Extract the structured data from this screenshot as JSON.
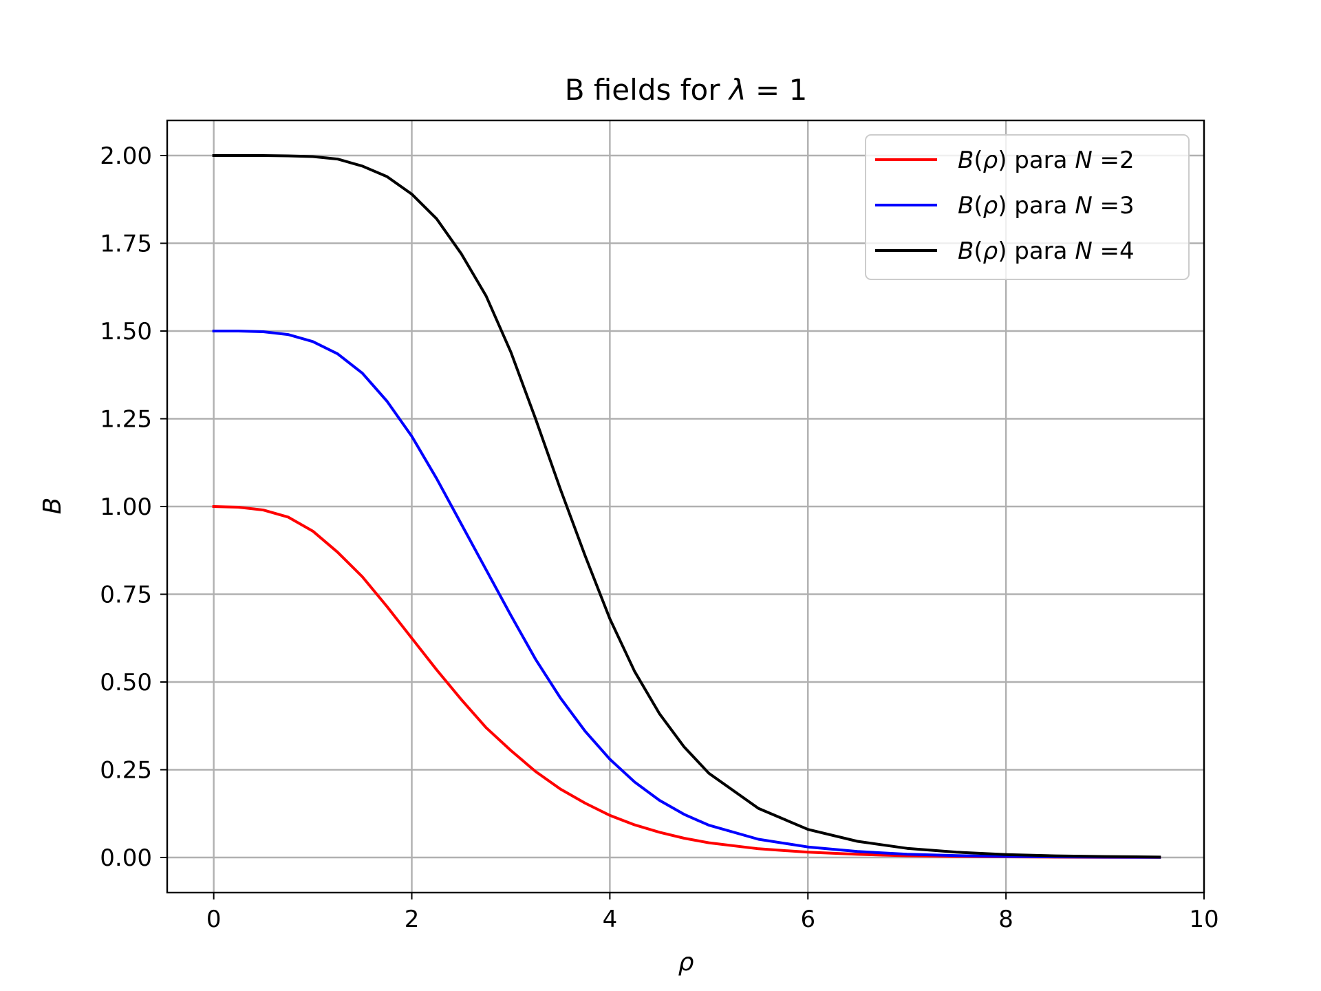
{
  "chart_data": {
    "type": "line",
    "title": "B fields for λ = 1",
    "xlabel": "ρ",
    "ylabel": "B",
    "xlim": [
      -0.47,
      10
    ],
    "ylim": [
      -0.1,
      2.1
    ],
    "xticks": [
      0,
      2,
      4,
      6,
      8,
      10
    ],
    "xtick_labels": [
      "0",
      "2",
      "4",
      "6",
      "8",
      "10"
    ],
    "yticks": [
      0,
      0.25,
      0.5,
      0.75,
      1.0,
      1.25,
      1.5,
      1.75,
      2.0
    ],
    "ytick_labels": [
      "0.00",
      "0.25",
      "0.50",
      "0.75",
      "1.00",
      "1.25",
      "1.50",
      "1.75",
      "2.00"
    ],
    "grid": true,
    "legend_position": "top-right",
    "series": [
      {
        "name": "B(ρ) para N =2",
        "color": "#ff0000",
        "x": [
          0,
          0.25,
          0.5,
          0.75,
          1.0,
          1.25,
          1.5,
          1.75,
          2.0,
          2.25,
          2.5,
          2.75,
          3.0,
          3.25,
          3.5,
          3.75,
          4.0,
          4.25,
          4.5,
          4.75,
          5.0,
          5.5,
          6.0,
          6.5,
          7.0,
          7.5,
          8.0,
          8.5,
          9.0,
          9.55
        ],
        "y": [
          1.0,
          0.998,
          0.99,
          0.97,
          0.93,
          0.87,
          0.8,
          0.715,
          0.625,
          0.535,
          0.45,
          0.37,
          0.305,
          0.245,
          0.195,
          0.155,
          0.12,
          0.093,
          0.072,
          0.055,
          0.042,
          0.025,
          0.015,
          0.009,
          0.005,
          0.003,
          0.002,
          0.001,
          0.0006,
          0.0003
        ]
      },
      {
        "name": "B(ρ) para N =3",
        "color": "#0000ff",
        "x": [
          0,
          0.25,
          0.5,
          0.75,
          1.0,
          1.25,
          1.5,
          1.75,
          2.0,
          2.25,
          2.5,
          2.75,
          3.0,
          3.25,
          3.5,
          3.75,
          4.0,
          4.25,
          4.5,
          4.75,
          5.0,
          5.5,
          6.0,
          6.5,
          7.0,
          7.5,
          8.0,
          8.5,
          9.0,
          9.55
        ],
        "y": [
          1.5,
          1.5,
          1.498,
          1.49,
          1.47,
          1.435,
          1.38,
          1.3,
          1.2,
          1.08,
          0.95,
          0.82,
          0.69,
          0.565,
          0.455,
          0.36,
          0.28,
          0.215,
          0.163,
          0.123,
          0.092,
          0.052,
          0.03,
          0.017,
          0.0095,
          0.0053,
          0.003,
          0.0017,
          0.001,
          0.0005
        ]
      },
      {
        "name": "B(ρ) para N =4",
        "color": "#000000",
        "x": [
          0,
          0.25,
          0.5,
          0.75,
          1.0,
          1.25,
          1.5,
          1.75,
          2.0,
          2.25,
          2.5,
          2.75,
          3.0,
          3.25,
          3.5,
          3.75,
          4.0,
          4.25,
          4.5,
          4.75,
          5.0,
          5.5,
          6.0,
          6.5,
          7.0,
          7.5,
          8.0,
          8.5,
          9.0,
          9.55
        ],
        "y": [
          2.0,
          2.0,
          2.0,
          1.999,
          1.997,
          1.99,
          1.97,
          1.94,
          1.89,
          1.82,
          1.72,
          1.6,
          1.44,
          1.25,
          1.05,
          0.86,
          0.68,
          0.53,
          0.41,
          0.315,
          0.24,
          0.14,
          0.08,
          0.046,
          0.026,
          0.015,
          0.0085,
          0.0048,
          0.0027,
          0.0014
        ]
      }
    ]
  }
}
